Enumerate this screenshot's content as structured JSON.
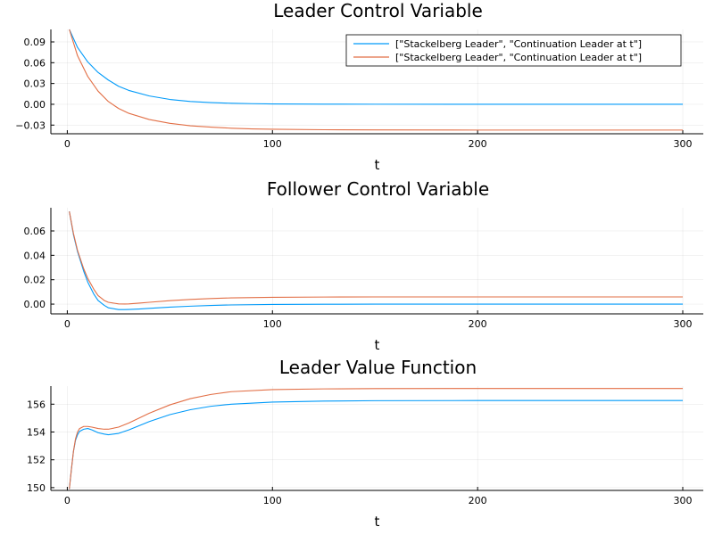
{
  "chart_data": [
    {
      "type": "line",
      "title": "Leader Control Variable",
      "xlabel": "t",
      "ylabel": "",
      "xlim": [
        -8,
        310
      ],
      "ylim": [
        -0.0425,
        0.108
      ],
      "xticks": [
        0,
        100,
        200,
        300
      ],
      "xtick_labels": [
        "0",
        "100",
        "200",
        "300"
      ],
      "yticks": [
        -0.03,
        0.0,
        0.03,
        0.06,
        0.09
      ],
      "ytick_labels": [
        "−0.03",
        "0.00",
        "0.03",
        "0.06",
        "0.09"
      ],
      "grid": true,
      "legend": "top-right",
      "series": [
        {
          "name": "[\"Stackelberg Leader\", \"Continuation Leader at t\"]",
          "color": "#009af9",
          "x": [
            1,
            5,
            10,
            15,
            20,
            25,
            30,
            40,
            50,
            60,
            70,
            80,
            90,
            100,
            125,
            150,
            200,
            250,
            300
          ],
          "y": [
            0.108,
            0.082,
            0.061,
            0.046,
            0.035,
            0.026,
            0.02,
            0.012,
            0.007,
            0.004,
            0.0025,
            0.0015,
            0.0009,
            0.0005,
            0.0002,
            0.0001,
            0.0,
            0.0,
            0.0
          ]
        },
        {
          "name": "[\"Stackelberg Leader\", \"Continuation Leader at t\"]",
          "color": "#e26f46",
          "x": [
            1,
            5,
            10,
            15,
            20,
            25,
            30,
            40,
            50,
            60,
            70,
            80,
            90,
            100,
            125,
            150,
            200,
            250,
            300
          ],
          "y": [
            0.108,
            0.07,
            0.04,
            0.019,
            0.004,
            -0.006,
            -0.013,
            -0.022,
            -0.0275,
            -0.031,
            -0.033,
            -0.0345,
            -0.0355,
            -0.036,
            -0.0367,
            -0.037,
            -0.0372,
            -0.0372,
            -0.0372
          ]
        }
      ]
    },
    {
      "type": "line",
      "title": "Follower Control Variable",
      "xlabel": "t",
      "ylabel": "",
      "xlim": [
        -8,
        310
      ],
      "ylim": [
        -0.008,
        0.079
      ],
      "xticks": [
        0,
        100,
        200,
        300
      ],
      "xtick_labels": [
        "0",
        "100",
        "200",
        "300"
      ],
      "yticks": [
        0.0,
        0.02,
        0.04,
        0.06
      ],
      "ytick_labels": [
        "0.00",
        "0.02",
        "0.04",
        "0.06"
      ],
      "grid": true,
      "series": [
        {
          "name": "",
          "color": "#009af9",
          "x": [
            1,
            3,
            5,
            8,
            10,
            13,
            15,
            18,
            20,
            25,
            28,
            30,
            35,
            40,
            50,
            60,
            70,
            80,
            100,
            125,
            150,
            200,
            250,
            300
          ],
          "y": [
            0.076,
            0.057,
            0.043,
            0.027,
            0.018,
            0.008,
            0.003,
            -0.001,
            -0.003,
            -0.0045,
            -0.0045,
            -0.0044,
            -0.004,
            -0.0035,
            -0.0025,
            -0.0017,
            -0.0011,
            -0.0007,
            -0.0003,
            -0.0001,
            0.0,
            0.0,
            0.0,
            0.0
          ]
        },
        {
          "name": "",
          "color": "#e26f46",
          "x": [
            1,
            3,
            5,
            8,
            10,
            13,
            15,
            18,
            20,
            25,
            28,
            30,
            35,
            40,
            50,
            60,
            70,
            80,
            100,
            125,
            150,
            200,
            250,
            300
          ],
          "y": [
            0.076,
            0.058,
            0.044,
            0.029,
            0.021,
            0.012,
            0.007,
            0.003,
            0.0015,
            0.0002,
            0.0001,
            0.0002,
            0.0008,
            0.0015,
            0.0028,
            0.0038,
            0.0046,
            0.0051,
            0.0056,
            0.0058,
            0.0059,
            0.0059,
            0.0059,
            0.0059
          ]
        }
      ]
    },
    {
      "type": "line",
      "title": "Leader Value Function",
      "xlabel": "t",
      "ylabel": "",
      "xlim": [
        -8,
        310
      ],
      "ylim": [
        149.8,
        157.3
      ],
      "xticks": [
        0,
        100,
        200,
        300
      ],
      "xtick_labels": [
        "0",
        "100",
        "200",
        "300"
      ],
      "yticks": [
        150,
        152,
        154,
        156
      ],
      "ytick_labels": [
        "150",
        "152",
        "154",
        "156"
      ],
      "grid": true,
      "series": [
        {
          "name": "",
          "color": "#009af9",
          "x": [
            1,
            2,
            3,
            4,
            5,
            6,
            8,
            10,
            12,
            15,
            18,
            20,
            25,
            30,
            40,
            50,
            60,
            70,
            80,
            100,
            125,
            150,
            200,
            250,
            300
          ],
          "y": [
            149.9,
            151.3,
            152.6,
            153.4,
            153.8,
            154.05,
            154.2,
            154.25,
            154.15,
            153.95,
            153.85,
            153.8,
            153.9,
            154.15,
            154.75,
            155.25,
            155.6,
            155.85,
            156.0,
            156.15,
            156.22,
            156.25,
            156.26,
            156.26,
            156.26
          ]
        },
        {
          "name": "",
          "color": "#e26f46",
          "x": [
            1,
            2,
            3,
            4,
            5,
            6,
            8,
            10,
            12,
            15,
            18,
            20,
            25,
            30,
            40,
            50,
            60,
            70,
            80,
            100,
            125,
            150,
            200,
            250,
            300
          ],
          "y": [
            149.9,
            151.3,
            152.6,
            153.5,
            154.0,
            154.25,
            154.4,
            154.4,
            154.35,
            154.25,
            154.2,
            154.2,
            154.35,
            154.65,
            155.35,
            155.95,
            156.4,
            156.7,
            156.9,
            157.05,
            157.1,
            157.12,
            157.13,
            157.13,
            157.13
          ]
        }
      ]
    }
  ]
}
